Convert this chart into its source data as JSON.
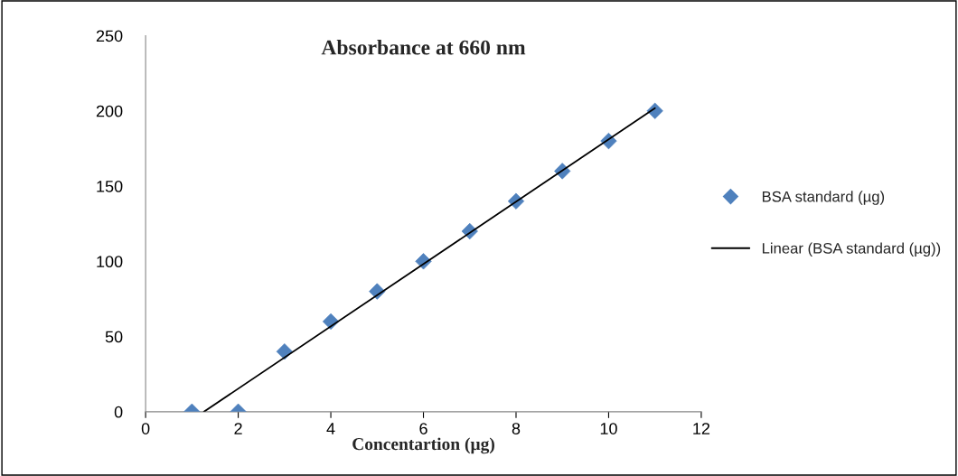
{
  "chart_data": {
    "type": "scatter",
    "title": "Absorbance at 660 nm",
    "xlabel": "Concentartion (µg)",
    "xlim": [
      0,
      12
    ],
    "xticks": [
      0,
      2,
      4,
      6,
      8,
      10,
      12
    ],
    "ylim": [
      0,
      250
    ],
    "yticks": [
      0,
      50,
      100,
      150,
      200,
      250
    ],
    "grid": false,
    "legend": "right",
    "series": [
      {
        "name": "BSA standard (µg)",
        "color": "#4f81bd",
        "marker": "diamond",
        "x": [
          1,
          2,
          3,
          4,
          5,
          6,
          7,
          8,
          9,
          10,
          11
        ],
        "values": [
          0,
          0,
          40,
          60,
          80,
          100,
          120,
          140,
          160,
          180,
          200
        ]
      },
      {
        "name": "Linear (BSA standard (µg))",
        "type": "line",
        "color": "#000000",
        "line_style": "solid",
        "marker": "none",
        "x": [
          1.26,
          11
        ],
        "values": [
          0,
          201.8
        ]
      }
    ]
  }
}
